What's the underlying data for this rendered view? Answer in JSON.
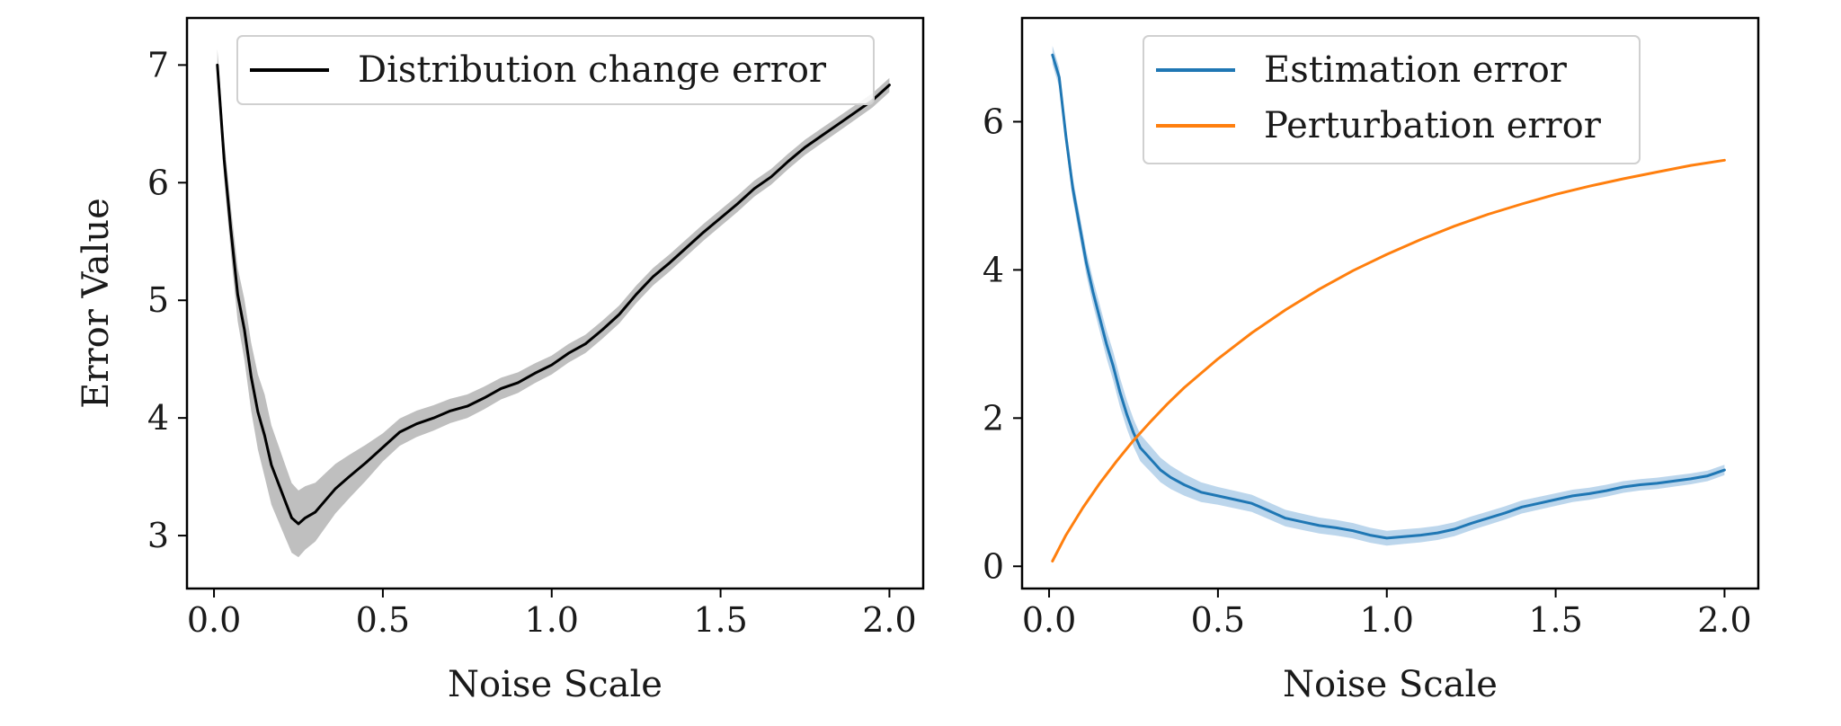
{
  "chart_data": [
    {
      "type": "line",
      "title": "",
      "xlabel": "Noise Scale",
      "ylabel": "Error Value",
      "xlim": [
        -0.08,
        2.1
      ],
      "ylim": [
        2.55,
        7.4
      ],
      "xticks": [
        "0.0",
        "0.5",
        "1.0",
        "1.5",
        "2.0"
      ],
      "yticks": [
        "3",
        "4",
        "5",
        "6",
        "7"
      ],
      "grid": false,
      "legend_position": "top-left",
      "series": [
        {
          "name": "Distribution change error",
          "color": "#000000",
          "band_color": "#a9a9a9",
          "band_halfwidth": [
            [
              0.0,
              0.12
            ],
            [
              0.15,
              0.35
            ],
            [
              0.3,
              0.25
            ],
            [
              0.5,
              0.12
            ],
            [
              1.0,
              0.08
            ],
            [
              2.0,
              0.06
            ]
          ],
          "x": [
            0.01,
            0.03,
            0.05,
            0.07,
            0.09,
            0.11,
            0.13,
            0.15,
            0.17,
            0.19,
            0.21,
            0.23,
            0.25,
            0.27,
            0.3,
            0.33,
            0.36,
            0.4,
            0.45,
            0.5,
            0.55,
            0.6,
            0.65,
            0.7,
            0.75,
            0.8,
            0.85,
            0.9,
            0.95,
            1.0,
            1.05,
            1.1,
            1.15,
            1.2,
            1.25,
            1.3,
            1.35,
            1.4,
            1.45,
            1.5,
            1.55,
            1.6,
            1.65,
            1.7,
            1.75,
            1.8,
            1.85,
            1.9,
            1.95,
            2.0
          ],
          "values": [
            7.0,
            6.2,
            5.6,
            5.05,
            4.75,
            4.35,
            4.05,
            3.85,
            3.6,
            3.45,
            3.3,
            3.15,
            3.1,
            3.15,
            3.2,
            3.3,
            3.4,
            3.5,
            3.62,
            3.75,
            3.88,
            3.95,
            4.0,
            4.06,
            4.1,
            4.17,
            4.25,
            4.3,
            4.38,
            4.45,
            4.55,
            4.63,
            4.75,
            4.88,
            5.05,
            5.2,
            5.32,
            5.45,
            5.58,
            5.7,
            5.82,
            5.95,
            6.05,
            6.18,
            6.3,
            6.4,
            6.5,
            6.6,
            6.7,
            6.83
          ]
        }
      ]
    },
    {
      "type": "line",
      "title": "",
      "xlabel": "Noise Scale",
      "ylabel": "",
      "xlim": [
        -0.08,
        2.1
      ],
      "ylim": [
        -0.3,
        7.4
      ],
      "xticks": [
        "0.0",
        "0.5",
        "1.0",
        "1.5",
        "2.0"
      ],
      "yticks": [
        "0",
        "2",
        "4",
        "6"
      ],
      "grid": false,
      "legend_position": "top-center",
      "series": [
        {
          "name": "Estimation error",
          "color": "#1f77b4",
          "band_color": "#a6c8e5",
          "band_halfwidth": [
            [
              0.0,
              0.12
            ],
            [
              0.2,
              0.2
            ],
            [
              0.5,
              0.12
            ],
            [
              1.0,
              0.1
            ],
            [
              2.0,
              0.07
            ]
          ],
          "x": [
            0.01,
            0.03,
            0.05,
            0.07,
            0.09,
            0.11,
            0.13,
            0.15,
            0.17,
            0.19,
            0.21,
            0.23,
            0.25,
            0.27,
            0.3,
            0.33,
            0.36,
            0.4,
            0.45,
            0.5,
            0.55,
            0.6,
            0.65,
            0.7,
            0.75,
            0.8,
            0.85,
            0.9,
            0.95,
            1.0,
            1.05,
            1.1,
            1.15,
            1.2,
            1.25,
            1.3,
            1.35,
            1.4,
            1.45,
            1.5,
            1.55,
            1.6,
            1.65,
            1.7,
            1.75,
            1.8,
            1.85,
            1.9,
            1.95,
            2.0
          ],
          "values": [
            6.9,
            6.6,
            5.8,
            5.1,
            4.6,
            4.1,
            3.7,
            3.35,
            3.0,
            2.7,
            2.35,
            2.05,
            1.8,
            1.6,
            1.45,
            1.3,
            1.2,
            1.1,
            1.0,
            0.95,
            0.9,
            0.85,
            0.75,
            0.65,
            0.6,
            0.55,
            0.52,
            0.48,
            0.42,
            0.38,
            0.4,
            0.42,
            0.45,
            0.5,
            0.58,
            0.65,
            0.72,
            0.8,
            0.85,
            0.9,
            0.95,
            0.98,
            1.02,
            1.07,
            1.1,
            1.12,
            1.15,
            1.18,
            1.22,
            1.3
          ]
        },
        {
          "name": "Perturbation error",
          "color": "#ff7f0e",
          "x": [
            0.01,
            0.05,
            0.1,
            0.15,
            0.2,
            0.25,
            0.3,
            0.35,
            0.4,
            0.5,
            0.6,
            0.7,
            0.8,
            0.9,
            1.0,
            1.1,
            1.2,
            1.3,
            1.4,
            1.5,
            1.6,
            1.7,
            1.8,
            1.9,
            2.0
          ],
          "values": [
            0.07,
            0.42,
            0.79,
            1.12,
            1.42,
            1.7,
            1.95,
            2.19,
            2.41,
            2.8,
            3.15,
            3.46,
            3.74,
            3.99,
            4.21,
            4.41,
            4.59,
            4.75,
            4.89,
            5.02,
            5.13,
            5.23,
            5.32,
            5.41,
            5.48
          ]
        }
      ]
    }
  ]
}
